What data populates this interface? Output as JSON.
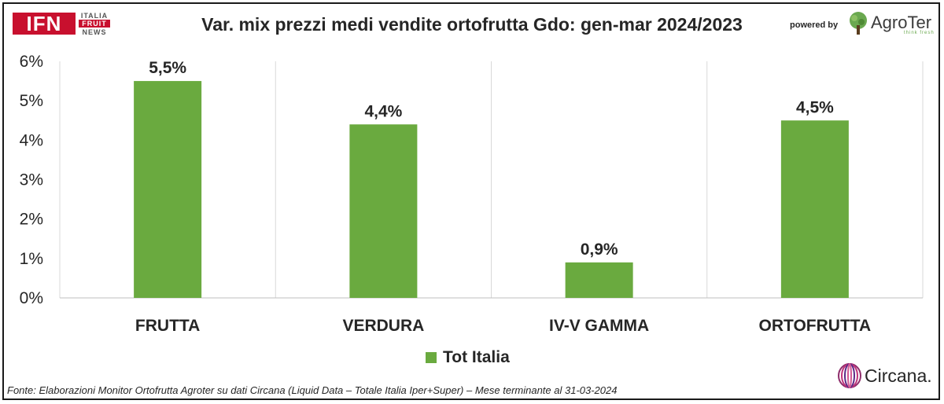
{
  "header": {
    "title": "Var. mix prezzi medi vendite ortofrutta Gdo: gen-mar 2024/2023",
    "ifn_logo_text": "IFN",
    "ifn_line1": "ITALIA",
    "ifn_line2": "FRUIT",
    "ifn_line3": "NEWS",
    "powered_by": "powered by",
    "agroter_name": "AgroTer",
    "agroter_tagline": "think fresh"
  },
  "footer": {
    "source": "Fonte: Elaborazioni Monitor Ortofrutta Agroter su dati Circana (Liquid Data – Totale Italia Iper+Super) – Mese terminante al 31-03-2024",
    "circana_name": "Circana."
  },
  "colors": {
    "bar": "#6aaa3f",
    "grid": "#d9d9d9",
    "logo_red": "#c8102e"
  },
  "chart_data": {
    "type": "bar",
    "title": "Var. mix prezzi medi vendite ortofrutta Gdo: gen-mar 2024/2023",
    "categories": [
      "FRUTTA",
      "VERDURA",
      "IV-V GAMMA",
      "ORTOFRUTTA"
    ],
    "series": [
      {
        "name": "Tot Italia",
        "values": [
          5.5,
          4.4,
          0.9,
          4.5
        ],
        "labels": [
          "5,5%",
          "4,4%",
          "0,9%",
          "4,5%"
        ]
      }
    ],
    "ylim": [
      0,
      6
    ],
    "yticks": [
      0,
      1,
      2,
      3,
      4,
      5,
      6
    ],
    "ytick_labels": [
      "0%",
      "1%",
      "2%",
      "3%",
      "4%",
      "5%",
      "6%"
    ],
    "grid": "vertical separators between categories",
    "legend": "bottom-center"
  }
}
